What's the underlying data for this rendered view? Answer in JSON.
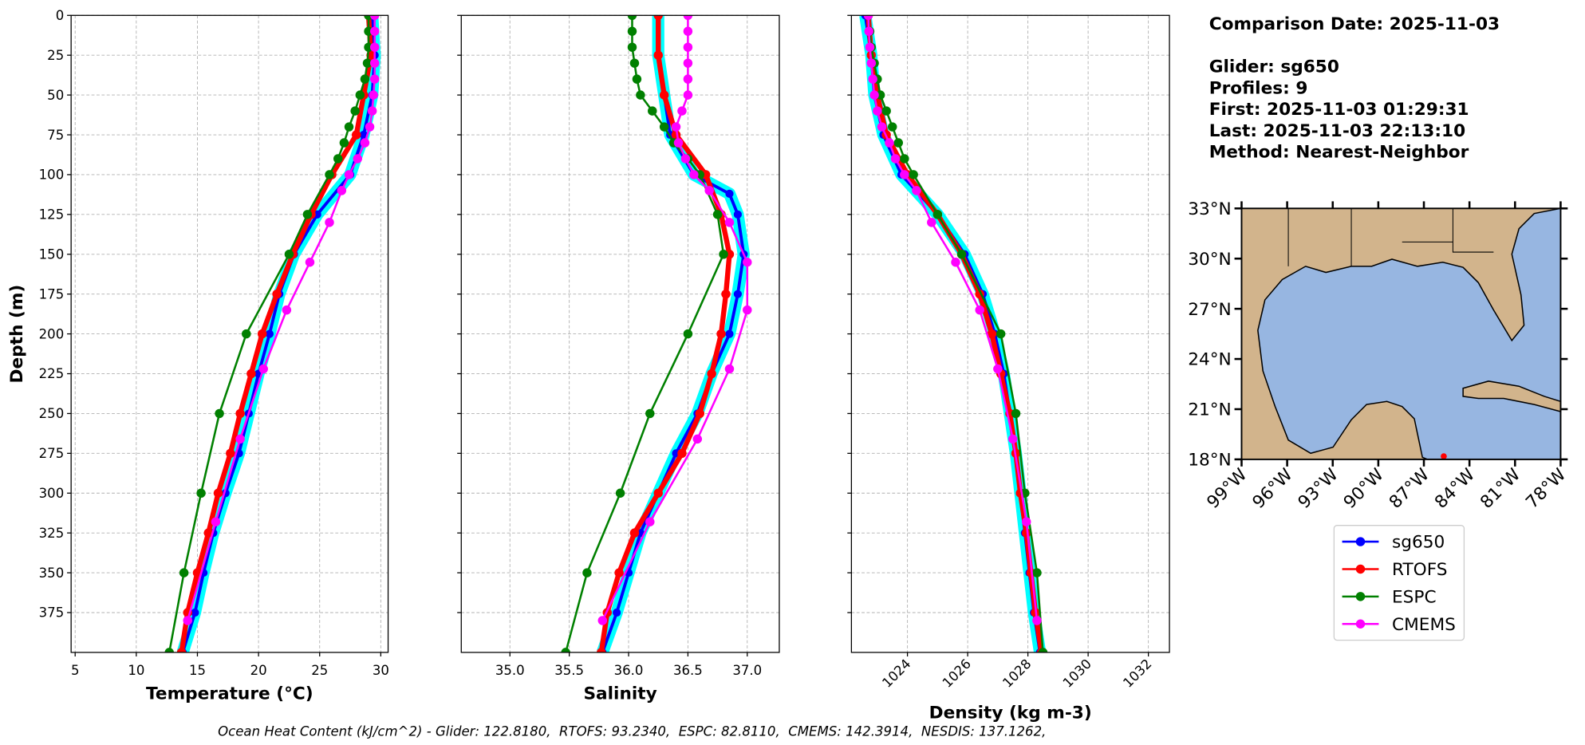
{
  "legend": {
    "series": [
      {
        "name": "sg650",
        "color": "#0000ff"
      },
      {
        "name": "RTOFS",
        "color": "#ff0000"
      },
      {
        "name": "ESPC",
        "color": "#008000"
      },
      {
        "name": "CMEMS",
        "color": "#ff00ff"
      }
    ]
  },
  "info": {
    "date": "Comparison Date: 2025-11-03",
    "glider": "Glider: sg650",
    "profiles": "Profiles: 9",
    "first": "First: 2025-11-03 01:29:31",
    "last": "Last: 2025-11-03 22:13:10",
    "method": "Method: Nearest-Neighbor"
  },
  "footer": "Ocean Heat Content (kJ/cm^2) - Glider: 122.8180,  RTOFS: 93.2340,  ESPC: 82.8110,  CMEMS: 142.3914,  NESDIS: 137.1262,",
  "chart_data": [
    {
      "type": "line",
      "xlabel": "Temperature (°C)",
      "ylabel": "Depth (m)",
      "xlim": [
        4.67,
        30.6
      ],
      "xticks": [
        5,
        10,
        15,
        20,
        25,
        30
      ],
      "ylim": [
        400,
        0
      ],
      "yticks": [
        0,
        25,
        50,
        75,
        100,
        125,
        150,
        175,
        200,
        225,
        250,
        275,
        300,
        325,
        350,
        375
      ],
      "ytick_labels": true,
      "grid": true,
      "profiles": [
        {
          "y": [
            0,
            25,
            50,
            75,
            100,
            125,
            150,
            175,
            200,
            225,
            250,
            275,
            300,
            325,
            350,
            375,
            400
          ],
          "x": [
            29.3,
            29.5,
            29.3,
            28.6,
            27.5,
            24.8,
            22.9,
            21.7,
            20.9,
            20.0,
            19.2,
            18.4,
            17.3,
            16.3,
            15.5,
            14.8,
            13.8
          ]
        },
        {
          "y": [
            0,
            25,
            50,
            75,
            100,
            125,
            150,
            175,
            200,
            225,
            250,
            275,
            300,
            325,
            350,
            375,
            400
          ],
          "x": [
            29.0,
            29.2,
            28.6,
            28.0,
            26.0,
            24.3,
            22.8,
            21.5,
            20.3,
            19.4,
            18.5,
            17.7,
            16.7,
            15.9,
            15.0,
            14.2,
            13.7
          ]
        },
        {
          "y": [
            0,
            10,
            20,
            30,
            40,
            50,
            60,
            70,
            80,
            90,
            100,
            125,
            150,
            200,
            250,
            300,
            350,
            400
          ],
          "x": [
            29.0,
            29.0,
            29.0,
            28.9,
            28.7,
            28.3,
            27.9,
            27.4,
            27.0,
            26.5,
            25.8,
            24.0,
            22.5,
            19.0,
            16.8,
            15.3,
            13.9,
            12.7
          ]
        },
        {
          "y": [
            0,
            10,
            20,
            30,
            40,
            50,
            60,
            70,
            80,
            90,
            100,
            110,
            130,
            155,
            185,
            222,
            266,
            318,
            380
          ],
          "x": [
            29.5,
            29.5,
            29.5,
            29.5,
            29.5,
            29.4,
            29.3,
            29.1,
            28.7,
            28.1,
            27.4,
            26.8,
            25.8,
            24.2,
            22.3,
            20.4,
            18.5,
            16.5,
            14.2
          ]
        }
      ]
    },
    {
      "type": "line",
      "xlabel": "Salinity",
      "xlim": [
        34.59,
        37.27
      ],
      "xticks": [
        {
          "value": 35,
          "label": "35.0"
        },
        35.5,
        {
          "value": 36,
          "label": "36.0"
        },
        36.5,
        {
          "value": 37,
          "label": "37.0"
        }
      ],
      "ylim": [
        400,
        0
      ],
      "yticks": [
        0,
        25,
        50,
        75,
        100,
        125,
        150,
        175,
        200,
        225,
        250,
        275,
        300,
        325,
        350,
        375
      ],
      "ytick_labels": false,
      "grid": true,
      "profiles": [
        {
          "y": [
            0,
            25,
            50,
            75,
            100,
            112,
            125,
            150,
            175,
            200,
            225,
            250,
            275,
            300,
            325,
            350,
            375,
            400
          ],
          "x": [
            36.25,
            36.25,
            36.3,
            36.35,
            36.55,
            36.85,
            36.92,
            36.97,
            36.92,
            36.85,
            36.7,
            36.58,
            36.4,
            36.25,
            36.1,
            36.0,
            35.9,
            35.78
          ]
        },
        {
          "y": [
            0,
            25,
            50,
            75,
            100,
            125,
            150,
            175,
            200,
            225,
            250,
            275,
            300,
            325,
            350,
            375,
            400
          ],
          "x": [
            36.25,
            36.25,
            36.3,
            36.4,
            36.65,
            36.78,
            36.85,
            36.82,
            36.78,
            36.7,
            36.6,
            36.45,
            36.25,
            36.05,
            35.92,
            35.82,
            35.77
          ]
        },
        {
          "y": [
            0,
            10,
            20,
            30,
            40,
            50,
            60,
            70,
            80,
            90,
            100,
            125,
            150,
            200,
            250,
            300,
            350,
            400
          ],
          "x": [
            36.03,
            36.03,
            36.03,
            36.05,
            36.07,
            36.1,
            36.2,
            36.3,
            36.38,
            36.5,
            36.6,
            36.75,
            36.8,
            36.5,
            36.18,
            35.93,
            35.65,
            35.47
          ]
        },
        {
          "y": [
            0,
            10,
            20,
            30,
            40,
            50,
            60,
            70,
            80,
            90,
            100,
            110,
            130,
            155,
            185,
            222,
            266,
            318,
            380
          ],
          "x": [
            36.5,
            36.5,
            36.5,
            36.5,
            36.5,
            36.5,
            36.45,
            36.4,
            36.42,
            36.48,
            36.55,
            36.68,
            36.85,
            37.0,
            37.0,
            36.85,
            36.58,
            36.18,
            35.78
          ]
        }
      ]
    },
    {
      "type": "line",
      "xlabel": "Density (kg m-3)",
      "xlim": [
        1022.14,
        1032.7
      ],
      "xticks": [
        1024,
        1026,
        1028,
        1030,
        1032
      ],
      "xtick_rotation": -45,
      "ylim": [
        400,
        0
      ],
      "yticks": [
        0,
        25,
        50,
        75,
        100,
        125,
        150,
        175,
        200,
        225,
        250,
        275,
        300,
        325,
        350,
        375
      ],
      "ytick_labels": false,
      "grid": true,
      "profiles": [
        {
          "y": [
            0,
            25,
            50,
            75,
            100,
            125,
            150,
            175,
            200,
            225,
            250,
            275,
            300,
            325,
            350,
            375,
            400
          ],
          "x": [
            1022.6,
            1022.8,
            1022.9,
            1023.2,
            1023.8,
            1025.0,
            1025.9,
            1026.5,
            1026.9,
            1027.2,
            1027.4,
            1027.6,
            1027.75,
            1027.9,
            1028.05,
            1028.2,
            1028.4
          ]
        },
        {
          "y": [
            0,
            25,
            50,
            75,
            100,
            125,
            150,
            175,
            200,
            225,
            250,
            275,
            300,
            325,
            350,
            375,
            400
          ],
          "x": [
            1022.7,
            1022.8,
            1023.0,
            1023.3,
            1024.0,
            1025.0,
            1025.8,
            1026.4,
            1026.8,
            1027.1,
            1027.4,
            1027.6,
            1027.75,
            1027.95,
            1028.1,
            1028.25,
            1028.45
          ]
        },
        {
          "y": [
            0,
            10,
            20,
            30,
            40,
            50,
            60,
            70,
            80,
            90,
            100,
            125,
            150,
            200,
            250,
            300,
            350,
            400
          ],
          "x": [
            1022.7,
            1022.75,
            1022.8,
            1022.9,
            1023.0,
            1023.1,
            1023.3,
            1023.5,
            1023.7,
            1023.9,
            1024.2,
            1025.0,
            1025.8,
            1027.1,
            1027.6,
            1027.9,
            1028.3,
            1028.5
          ]
        },
        {
          "y": [
            0,
            10,
            20,
            30,
            40,
            50,
            60,
            70,
            80,
            90,
            100,
            110,
            130,
            155,
            185,
            222,
            266,
            318,
            380
          ],
          "x": [
            1022.7,
            1022.72,
            1022.75,
            1022.8,
            1022.85,
            1022.9,
            1023.0,
            1023.15,
            1023.4,
            1023.6,
            1023.9,
            1024.3,
            1024.8,
            1025.6,
            1026.4,
            1027.0,
            1027.5,
            1027.95,
            1028.3
          ]
        }
      ]
    }
  ],
  "map": {
    "lonlim": [
      -99,
      -78
    ],
    "latlim": [
      18,
      33
    ],
    "lonticks": [
      {
        "value": -99,
        "label": "99°W"
      },
      {
        "value": -96,
        "label": "96°W"
      },
      {
        "value": -93,
        "label": "93°W"
      },
      {
        "value": -90,
        "label": "90°W"
      },
      {
        "value": -87,
        "label": "87°W"
      },
      {
        "value": -84,
        "label": "84°W"
      },
      {
        "value": -81,
        "label": "81°W"
      },
      {
        "value": -78,
        "label": "78°W"
      }
    ],
    "latticks": [
      {
        "value": 18,
        "label": "18°N"
      },
      {
        "value": 21,
        "label": "21°N"
      },
      {
        "value": 24,
        "label": "24°N"
      },
      {
        "value": 27,
        "label": "27°N"
      },
      {
        "value": 30,
        "label": "30°N"
      },
      {
        "value": 33,
        "label": "33°N"
      }
    ]
  }
}
